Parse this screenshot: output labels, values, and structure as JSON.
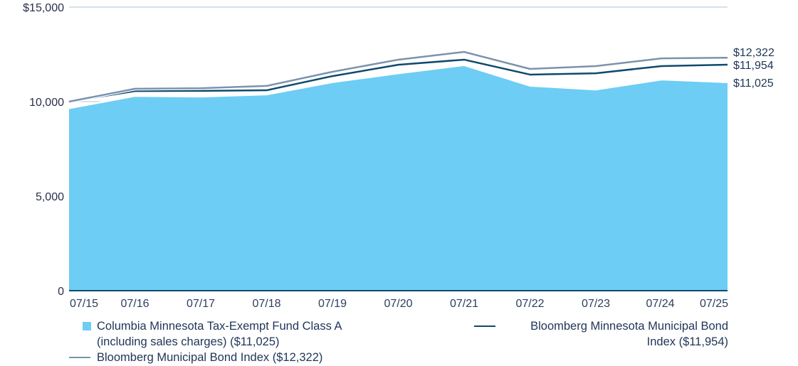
{
  "chart_data": {
    "type": "area",
    "title": "",
    "xlabel": "",
    "ylabel": "",
    "ylim": [
      0,
      15000
    ],
    "yticks": [
      0,
      5000,
      10000,
      15000
    ],
    "ytick_labels": [
      "0",
      "5,000",
      "10,000",
      "$15,000"
    ],
    "grid": "y-top-only",
    "categories": [
      "07/15",
      "07/16",
      "07/17",
      "07/18",
      "07/19",
      "07/20",
      "07/21",
      "07/22",
      "07/23",
      "07/24",
      "07/25"
    ],
    "series": [
      {
        "name": "Columbia Minnesota Tax-Exempt Fund Class A (including sales charges)",
        "style": "area",
        "color": "#6dcdf4",
        "values": [
          9650,
          10300,
          10270,
          10380,
          11030,
          11500,
          11930,
          10840,
          10640,
          11170,
          11025
        ],
        "end_label": "$11,025"
      },
      {
        "name": "Bloomberg Minnesota Municipal Bond Index",
        "style": "line",
        "color": "#0d4a6e",
        "values": [
          10000,
          10560,
          10570,
          10600,
          11350,
          11950,
          12220,
          11430,
          11500,
          11880,
          11954
        ],
        "end_label": "$11,954"
      },
      {
        "name": "Bloomberg Municipal Bond Index",
        "style": "line",
        "color": "#7b93ad",
        "values": [
          10000,
          10680,
          10710,
          10830,
          11580,
          12220,
          12630,
          11730,
          11880,
          12290,
          12322
        ],
        "end_label": "$12,322"
      }
    ],
    "legend": {
      "placement": "bottom",
      "items": [
        {
          "label_line1": "Columbia Minnesota Tax-Exempt Fund Class A",
          "label_line2": "(including sales charges) ($11,025)"
        },
        {
          "label_line1": "Bloomberg Minnesota Municipal Bond",
          "label_line2": "Index ($11,954)"
        },
        {
          "label_line1": "Bloomberg Municipal Bond Index ($12,322)"
        }
      ]
    }
  }
}
